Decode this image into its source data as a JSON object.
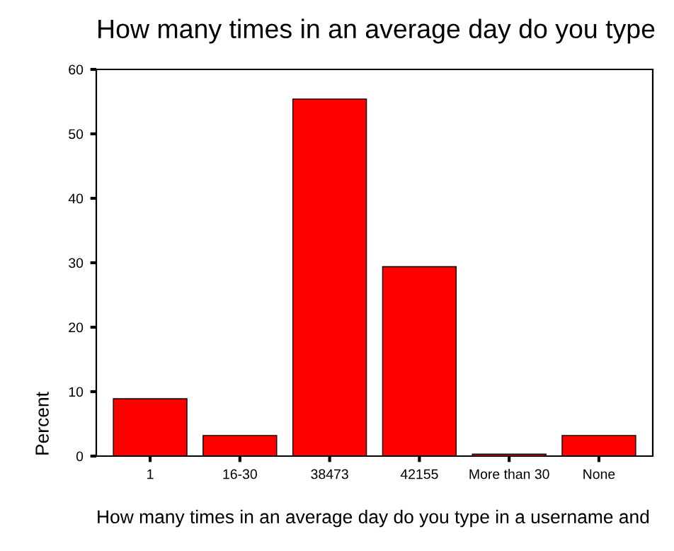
{
  "chart_data": {
    "type": "bar",
    "title": "How many times in an average day do you type",
    "xlabel": "How many times in an average day do you type in a username and",
    "ylabel": "Percent",
    "categories": [
      "1",
      "16-30",
      "38473",
      "42155",
      "More than 30",
      "None"
    ],
    "values": [
      8.9,
      3.2,
      55.4,
      29.4,
      0.3,
      3.2
    ],
    "color": "#ff0000",
    "ylim": [
      0,
      60
    ],
    "yticks": [
      0,
      10,
      20,
      30,
      40,
      50,
      60
    ],
    "grid": false,
    "legend": false
  }
}
